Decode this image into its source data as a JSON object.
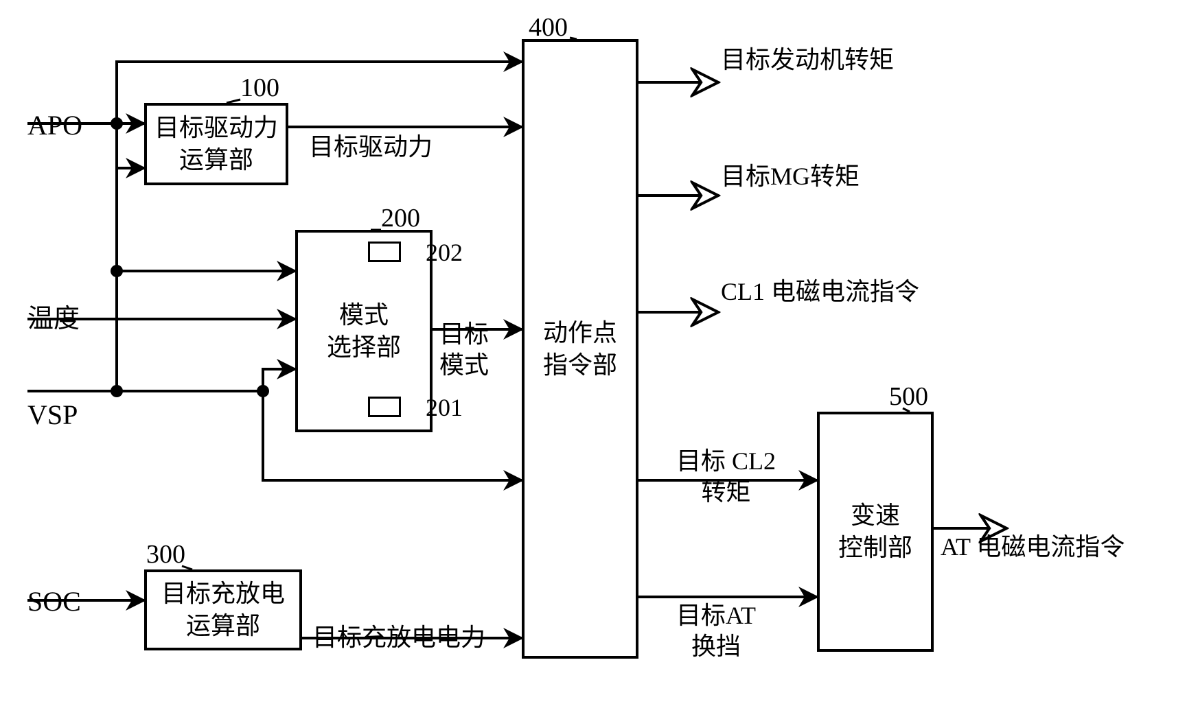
{
  "inputs": {
    "apo": "APO",
    "temp": "温度",
    "vsp": "VSP",
    "soc": "SOC"
  },
  "blocks": {
    "b100": {
      "num": "100",
      "text": "目标驱动力\n运算部"
    },
    "b200": {
      "num": "200",
      "text": "模式\n选择部",
      "sub1": "202",
      "sub2": "201"
    },
    "b300": {
      "num": "300",
      "text": "目标充放电\n运算部"
    },
    "b400": {
      "num": "400",
      "text": "动作点\n指令部"
    },
    "b500": {
      "num": "500",
      "text": "变速\n控制部"
    }
  },
  "signals": {
    "drive": "目标驱动力",
    "mode": "目标\n模式",
    "charge": "目标充放电电力",
    "out1": "目标发动机转矩",
    "out2": "目标MG转矩",
    "out3": "CL1 电磁电流指令",
    "out4": "目标 CL2\n转矩",
    "out5": "目标AT\n换挡",
    "out6": "AT 电磁电流指令"
  },
  "style": {
    "stroke": "#000000",
    "strokeWidth": 4,
    "fontLabel": 34,
    "fontBox": 36,
    "fontNum": 36
  }
}
